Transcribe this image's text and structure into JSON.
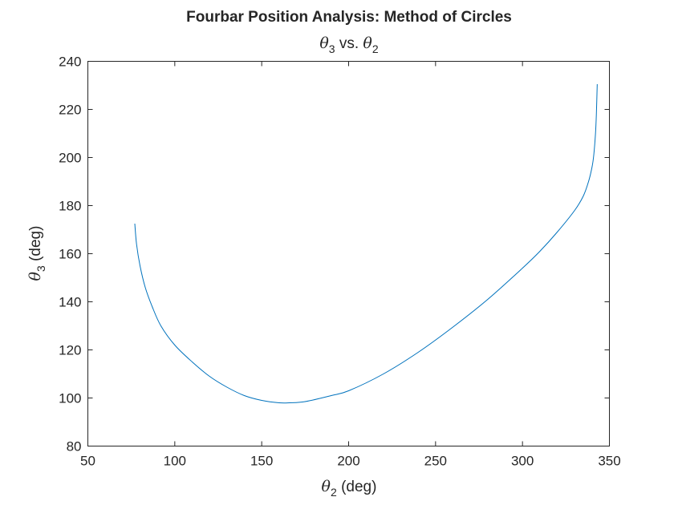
{
  "chart_data": {
    "type": "line",
    "title": "Fourbar Position Analysis: Method of Circles",
    "subtitle": {
      "lhs_symbol": "θ",
      "lhs_subscript": "3",
      "middle": " vs. ",
      "rhs_symbol": "θ",
      "rhs_subscript": "2"
    },
    "xlabel": {
      "symbol": "θ",
      "subscript": "2",
      "unit": " (deg)"
    },
    "ylabel": {
      "symbol": "θ",
      "subscript": "3",
      "unit": " (deg)"
    },
    "xlim": [
      50,
      350
    ],
    "ylim": [
      80,
      240
    ],
    "xticks": [
      50,
      100,
      150,
      200,
      250,
      300,
      350
    ],
    "yticks": [
      80,
      100,
      120,
      140,
      160,
      180,
      200,
      220,
      240
    ],
    "grid": false,
    "line_color": "#0072BD",
    "series": [
      {
        "x": [
          77,
          78,
          80,
          83,
          87,
          92,
          100,
          110,
          120,
          130,
          140,
          150,
          160,
          166,
          175,
          190,
          200,
          220,
          240,
          260,
          280,
          300,
          310,
          320,
          330,
          335,
          338,
          340,
          341,
          342,
          342.5,
          343
        ],
        "y": [
          172.5,
          164,
          155,
          146,
          138,
          130,
          122,
          115,
          109,
          104.5,
          101,
          99,
          98,
          98,
          98.5,
          101,
          103,
          110,
          119,
          129.5,
          141,
          154,
          161,
          169,
          178,
          184,
          190,
          196,
          201,
          210,
          218,
          230.5
        ]
      }
    ]
  }
}
